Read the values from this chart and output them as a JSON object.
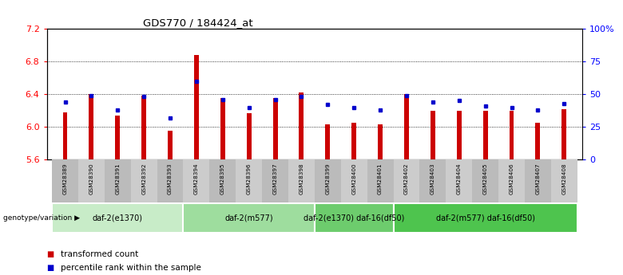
{
  "title": "GDS770 / 184424_at",
  "samples": [
    "GSM28389",
    "GSM28390",
    "GSM28391",
    "GSM28392",
    "GSM28393",
    "GSM28394",
    "GSM28395",
    "GSM28396",
    "GSM28397",
    "GSM28398",
    "GSM28399",
    "GSM28400",
    "GSM28401",
    "GSM28402",
    "GSM28403",
    "GSM28404",
    "GSM28405",
    "GSM28406",
    "GSM28407",
    "GSM28408"
  ],
  "transformed_count": [
    6.18,
    6.4,
    6.14,
    6.38,
    5.95,
    6.88,
    6.35,
    6.17,
    6.35,
    6.42,
    6.03,
    6.05,
    6.03,
    6.4,
    6.2,
    6.2,
    6.2,
    6.2,
    6.05,
    6.22
  ],
  "percentile_rank": [
    44,
    49,
    38,
    48,
    32,
    60,
    46,
    40,
    46,
    48,
    42,
    40,
    38,
    49,
    44,
    45,
    41,
    40,
    38,
    43
  ],
  "ymin": 5.6,
  "ymax": 7.2,
  "yticks": [
    5.6,
    6.0,
    6.4,
    6.8,
    7.2
  ],
  "right_yticks": [
    0,
    25,
    50,
    75,
    100
  ],
  "right_yticklabels": [
    "0",
    "25",
    "50",
    "75",
    "100%"
  ],
  "groups": [
    {
      "label": "daf-2(e1370)",
      "start": 0,
      "end": 5,
      "color": "#c8ecc8"
    },
    {
      "label": "daf-2(m577)",
      "start": 5,
      "end": 10,
      "color": "#9edd9e"
    },
    {
      "label": "daf-2(e1370) daf-16(df50)",
      "start": 10,
      "end": 13,
      "color": "#6dcc6d"
    },
    {
      "label": "daf-2(m577) daf-16(df50)",
      "start": 13,
      "end": 20,
      "color": "#4ec44e"
    }
  ],
  "bar_color": "#cc0000",
  "dot_color": "#0000cc",
  "bar_width": 0.18,
  "legend_items": [
    {
      "label": "transformed count",
      "color": "#cc0000"
    },
    {
      "label": "percentile rank within the sample",
      "color": "#0000cc"
    }
  ],
  "genotype_label": "genotype/variation"
}
